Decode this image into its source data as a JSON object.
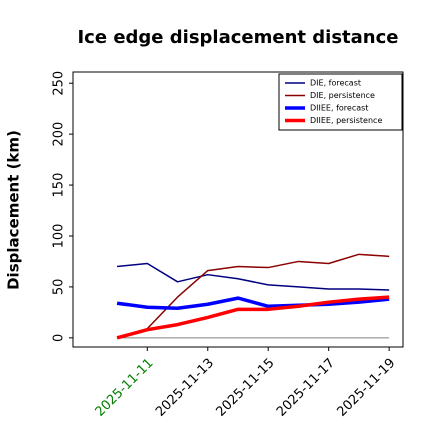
{
  "chart_data": {
    "type": "line",
    "title": "Ice edge displacement distance",
    "y_label": "Displacement (km)",
    "x": [
      "2025-11-10",
      "2025-11-11",
      "2025-11-12",
      "2025-11-13",
      "2025-11-14",
      "2025-11-15",
      "2025-11-16",
      "2025-11-17",
      "2025-11-18",
      "2025-11-19"
    ],
    "series": [
      {
        "name": "DIE, forecast",
        "color": "#000080",
        "width": 1.5,
        "values": [
          70,
          73,
          55,
          62,
          58,
          52,
          50,
          48,
          48,
          47
        ]
      },
      {
        "name": "DIE, persistence",
        "color": "#8b0000",
        "width": 1.5,
        "values": [
          0,
          9,
          40,
          66,
          70,
          69,
          75,
          73,
          82,
          80
        ]
      },
      {
        "name": "DIIEE, forecast",
        "color": "#0000ff",
        "width": 3.5,
        "values": [
          34,
          30,
          29,
          33,
          39,
          31,
          32,
          33,
          35,
          38
        ]
      },
      {
        "name": "DIIEE, persistence",
        "color": "#ff0000",
        "width": 3.5,
        "values": [
          0,
          8,
          13,
          20,
          28,
          28,
          31,
          35,
          38,
          40
        ]
      }
    ],
    "xlim": [
      "2025-11-08T13:00",
      "2025-11-19T11:00"
    ],
    "xticks": [
      "2025-11-11",
      "2025-11-13",
      "2025-11-15",
      "2025-11-17",
      "2025-11-19"
    ],
    "xtick_colors": [
      "green",
      "black",
      "black",
      "black",
      "black"
    ],
    "ylim": [
      -9,
      261
    ],
    "yticks": [
      0,
      50,
      100,
      150,
      200,
      250
    ],
    "legend": "upper right"
  }
}
